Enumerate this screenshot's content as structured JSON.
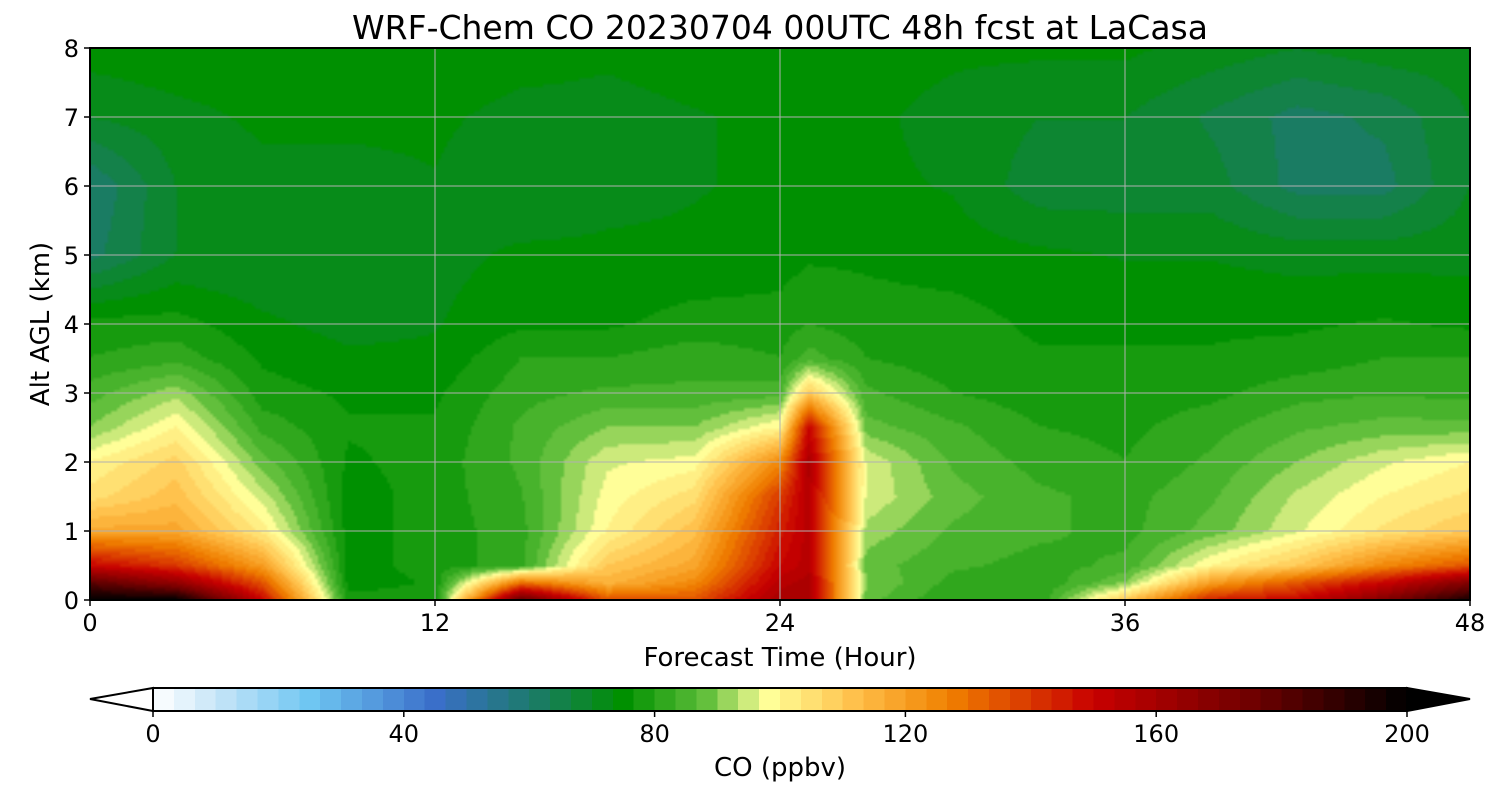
{
  "chart_data": {
    "type": "heatmap",
    "title": "WRF-Chem CO  20230704 00UTC 48h fcst at LaCasa",
    "xlabel": "Forecast Time (Hour)",
    "ylabel": "Alt AGL (km)",
    "xlim": [
      0,
      48
    ],
    "ylim": [
      0,
      8
    ],
    "x_ticks": [
      0,
      12,
      24,
      36,
      48
    ],
    "x_tick_labels": [
      "0",
      "12",
      "24",
      "36",
      "48"
    ],
    "y_ticks": [
      0,
      1,
      2,
      3,
      4,
      5,
      6,
      7,
      8
    ],
    "y_tick_labels": [
      "0",
      "1",
      "2",
      "3",
      "4",
      "5",
      "6",
      "7",
      "8"
    ],
    "grid": true,
    "colorbar": {
      "label": "CO  (ppbv)",
      "range": [
        0,
        200
      ],
      "ticks": [
        0,
        40,
        80,
        120,
        160,
        200
      ],
      "tick_labels": [
        "0",
        "40",
        "80",
        "120",
        "160",
        "200"
      ],
      "extend": "both",
      "orientation": "horizontal",
      "stops": [
        {
          "value": 0,
          "color": "#ffffff"
        },
        {
          "value": 10,
          "color": "#c8e6f8"
        },
        {
          "value": 25,
          "color": "#6fc6f2"
        },
        {
          "value": 45,
          "color": "#3a6fc9"
        },
        {
          "value": 60,
          "color": "#1d7a6e"
        },
        {
          "value": 75,
          "color": "#009000"
        },
        {
          "value": 88,
          "color": "#5fbe3a"
        },
        {
          "value": 98,
          "color": "#ffff99"
        },
        {
          "value": 112,
          "color": "#ffc04a"
        },
        {
          "value": 127,
          "color": "#f08000"
        },
        {
          "value": 150,
          "color": "#c80000"
        },
        {
          "value": 175,
          "color": "#700000"
        },
        {
          "value": 200,
          "color": "#000000"
        }
      ]
    },
    "profile_times": [
      0,
      3,
      6,
      9,
      12,
      15,
      18,
      21,
      24,
      25,
      27,
      30,
      33,
      36,
      39,
      42,
      45,
      48
    ],
    "profile_heights_km": [
      0,
      0.25,
      0.5,
      1,
      1.5,
      2,
      2.5,
      3,
      3.5,
      4,
      5,
      6,
      7,
      8
    ],
    "co_ppbv": [
      [
        200,
        180,
        150,
        118,
        105,
        100,
        90,
        85,
        80,
        78,
        62,
        60,
        70,
        75
      ],
      [
        200,
        165,
        140,
        118,
        112,
        108,
        100,
        92,
        82,
        78,
        70,
        70,
        72,
        76
      ],
      [
        150,
        135,
        120,
        102,
        95,
        88,
        82,
        78,
        76,
        74,
        70,
        72,
        74,
        76
      ],
      [
        78,
        75,
        75,
        75,
        75,
        76,
        77,
        76,
        74,
        72,
        70,
        72,
        74,
        76
      ],
      [
        78,
        77,
        78,
        78,
        78,
        78,
        77,
        76,
        74,
        73,
        72,
        73,
        74,
        76
      ],
      [
        180,
        130,
        82,
        82,
        83,
        84,
        84,
        82,
        80,
        76,
        74,
        70,
        72,
        75
      ],
      [
        135,
        115,
        110,
        100,
        98,
        96,
        90,
        84,
        80,
        76,
        74,
        72,
        72,
        74
      ],
      [
        135,
        125,
        118,
        112,
        105,
        98,
        90,
        84,
        82,
        78,
        74,
        73,
        73,
        75
      ],
      [
        160,
        155,
        150,
        145,
        140,
        125,
        100,
        85,
        80,
        78,
        75,
        74,
        74,
        75
      ],
      [
        160,
        158,
        155,
        155,
        155,
        158,
        150,
        110,
        85,
        80,
        76,
        74,
        74,
        76
      ],
      [
        88,
        90,
        88,
        92,
        96,
        96,
        88,
        84,
        80,
        78,
        76,
        74,
        74,
        75
      ],
      [
        80,
        82,
        84,
        86,
        88,
        86,
        84,
        80,
        78,
        78,
        75,
        73,
        72,
        74
      ],
      [
        80,
        80,
        82,
        84,
        84,
        82,
        80,
        78,
        77,
        76,
        74,
        68,
        70,
        74
      ],
      [
        110,
        90,
        84,
        82,
        82,
        80,
        79,
        78,
        77,
        76,
        73,
        68,
        70,
        74
      ],
      [
        145,
        120,
        100,
        88,
        86,
        84,
        82,
        79,
        77,
        76,
        73,
        68,
        66,
        72
      ],
      [
        150,
        135,
        110,
        96,
        94,
        90,
        86,
        82,
        78,
        76,
        72,
        62,
        62,
        70
      ],
      [
        170,
        150,
        125,
        104,
        100,
        96,
        88,
        83,
        80,
        77,
        72,
        62,
        64,
        72
      ],
      [
        195,
        170,
        135,
        110,
        104,
        100,
        88,
        82,
        80,
        76,
        72,
        70,
        70,
        72
      ]
    ]
  }
}
